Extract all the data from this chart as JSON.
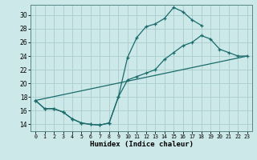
{
  "title": "",
  "xlabel": "Humidex (Indice chaleur)",
  "bg_color": "#cce8e8",
  "grid_color": "#aacccc",
  "line_color": "#1a6b6b",
  "xlim": [
    -0.5,
    23.5
  ],
  "ylim": [
    13.0,
    31.5
  ],
  "xticks": [
    0,
    1,
    2,
    3,
    4,
    5,
    6,
    7,
    8,
    9,
    10,
    11,
    12,
    13,
    14,
    15,
    16,
    17,
    18,
    19,
    20,
    21,
    22,
    23
  ],
  "yticks": [
    14,
    16,
    18,
    20,
    22,
    24,
    26,
    28,
    30
  ],
  "line1_x": [
    0,
    1,
    2,
    3,
    4,
    5,
    6,
    7,
    8,
    9,
    10,
    11,
    12,
    13,
    14,
    15,
    16,
    17,
    18,
    19,
    20,
    21,
    22,
    23
  ],
  "line1_y": [
    17.5,
    16.3,
    16.3,
    15.8,
    14.8,
    14.2,
    14.0,
    13.9,
    14.2,
    18.0,
    20.5,
    21.0,
    21.5,
    22.0,
    23.5,
    24.5,
    25.5,
    26.0,
    27.0,
    26.5,
    25.0,
    24.5,
    24.0,
    24.0
  ],
  "line2_x": [
    0,
    1,
    2,
    3,
    4,
    5,
    6,
    7,
    8,
    9,
    10,
    11,
    12,
    13,
    14,
    15,
    16,
    17,
    18
  ],
  "line2_y": [
    17.5,
    16.3,
    16.3,
    15.8,
    14.8,
    14.2,
    14.0,
    13.9,
    14.2,
    18.0,
    23.8,
    26.7,
    28.3,
    28.7,
    29.5,
    31.1,
    30.5,
    29.3,
    28.5
  ],
  "line3_x": [
    0,
    23
  ],
  "line3_y": [
    17.5,
    24.0
  ]
}
